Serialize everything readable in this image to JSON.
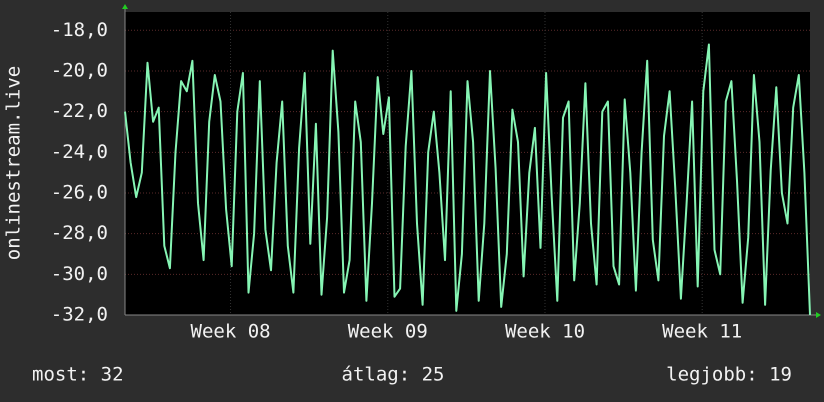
{
  "chart_data": {
    "type": "line",
    "y_label": "onlinestream.live",
    "xlim": [
      0,
      30.5
    ],
    "xticks": [
      {
        "value": 4.7,
        "label": "Week 08"
      },
      {
        "value": 11.7,
        "label": "Week 09"
      },
      {
        "value": 18.7,
        "label": "Week 10"
      },
      {
        "value": 25.7,
        "label": "Week 11"
      }
    ],
    "ylim": [
      -32,
      -17.1
    ],
    "yticks": [
      {
        "value": -18,
        "label": "-18,0"
      },
      {
        "value": -20,
        "label": "-20,0"
      },
      {
        "value": -22,
        "label": "-22,0"
      },
      {
        "value": -24,
        "label": "-24,0"
      },
      {
        "value": -26,
        "label": "-26,0"
      },
      {
        "value": -28,
        "label": "-28,0"
      },
      {
        "value": -30,
        "label": "-30,0"
      },
      {
        "value": -32,
        "label": "-32,0"
      }
    ],
    "grid": true,
    "series": [
      {
        "color": "#86f5b4",
        "x": [
          0,
          0.25,
          0.5,
          0.75,
          1,
          1.25,
          1.5,
          1.75,
          2,
          2.25,
          2.5,
          2.75,
          3,
          3.25,
          3.5,
          3.75,
          4,
          4.25,
          4.5,
          4.75,
          5,
          5.25,
          5.5,
          5.75,
          6,
          6.25,
          6.5,
          6.75,
          7,
          7.25,
          7.5,
          7.75,
          8,
          8.25,
          8.5,
          8.75,
          9,
          9.25,
          9.5,
          9.75,
          10,
          10.25,
          10.5,
          10.75,
          11,
          11.25,
          11.5,
          11.75,
          12,
          12.25,
          12.5,
          12.75,
          13,
          13.25,
          13.5,
          13.75,
          14,
          14.25,
          14.5,
          14.75,
          15,
          15.25,
          15.5,
          15.75,
          16,
          16.25,
          16.5,
          16.75,
          17,
          17.25,
          17.5,
          17.75,
          18,
          18.25,
          18.5,
          18.75,
          19,
          19.25,
          19.5,
          19.75,
          20,
          20.25,
          20.5,
          20.75,
          21,
          21.25,
          21.5,
          21.75,
          22,
          22.25,
          22.5,
          22.75,
          23,
          23.25,
          23.5,
          23.75,
          24,
          24.25,
          24.5,
          24.75,
          25,
          25.25,
          25.5,
          25.75,
          26,
          26.25,
          26.5,
          26.75,
          27,
          27.25,
          27.5,
          27.75,
          28,
          28.25,
          28.5,
          28.75,
          29,
          29.25,
          29.5,
          29.75,
          30,
          30.25,
          30.5
        ],
        "values": [
          -22,
          -24.5,
          -26.2,
          -25,
          -19.6,
          -22.5,
          -21.8,
          -28.6,
          -29.7,
          -24,
          -20.5,
          -21,
          -19.5,
          -26.5,
          -29.3,
          -22.5,
          -20.2,
          -21.5,
          -26.8,
          -29.6,
          -22,
          -20.1,
          -30.9,
          -28,
          -20.5,
          -27.8,
          -29.8,
          -24.5,
          -21.5,
          -28.6,
          -30.9,
          -23.8,
          -20.1,
          -28.5,
          -22.6,
          -31,
          -27.2,
          -19,
          -23,
          -30.9,
          -29.3,
          -21.5,
          -23.5,
          -31.3,
          -26.5,
          -20.3,
          -23.1,
          -21.3,
          -31.1,
          -30.7,
          -23.7,
          -20,
          -27.5,
          -31.5,
          -24,
          -22,
          -25,
          -29.3,
          -21,
          -31.8,
          -29,
          -20.5,
          -23.5,
          -31.3,
          -27.5,
          -20,
          -24.8,
          -31.6,
          -29,
          -21.9,
          -23.5,
          -30.1,
          -25,
          -22.8,
          -28.7,
          -20.1,
          -26.2,
          -31.3,
          -22.3,
          -21.5,
          -30.3,
          -26.5,
          -20.6,
          -27.5,
          -30.5,
          -22,
          -21.5,
          -29.6,
          -30.5,
          -21.4,
          -25,
          -30.8,
          -24,
          -19.5,
          -28.3,
          -30.3,
          -23.2,
          -21,
          -25.7,
          -31.2,
          -26.6,
          -21.5,
          -30.6,
          -21,
          -18.7,
          -28.8,
          -30,
          -21.5,
          -20.5,
          -25.4,
          -31.4,
          -28.2,
          -20.2,
          -23.5,
          -31.5,
          -24.9,
          -20.8,
          -26,
          -27.5,
          -21.8,
          -20.2,
          -25,
          -32
        ]
      }
    ],
    "footer": [
      "most: 32",
      "átlag: 25",
      "legjobb: 19"
    ]
  }
}
